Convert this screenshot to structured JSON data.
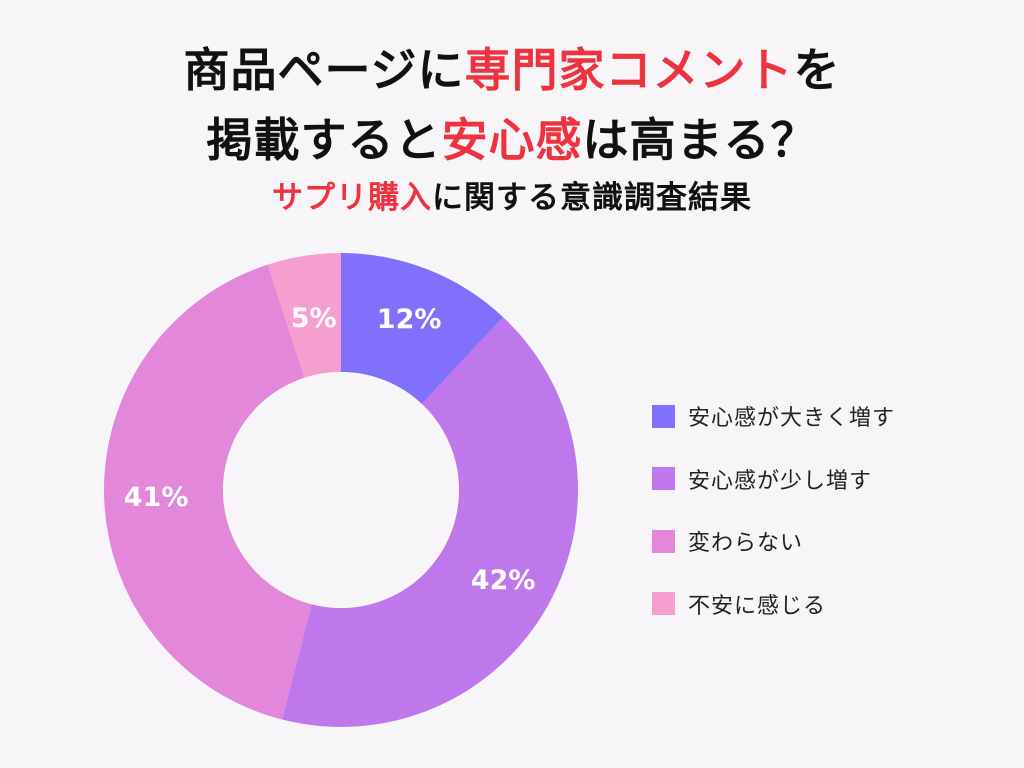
{
  "title": {
    "line1": [
      {
        "text": "商品ページに",
        "highlight": false
      },
      {
        "text": "専門家コメント",
        "highlight": true
      },
      {
        "text": "を",
        "highlight": false
      }
    ],
    "line2": [
      {
        "text": "掲載すると",
        "highlight": false
      },
      {
        "text": "安心感",
        "highlight": true
      },
      {
        "text": "は高まる？",
        "highlight": false
      }
    ],
    "subtitle": [
      {
        "text": "サプリ購入",
        "highlight": true
      },
      {
        "text": "に関する意識調査結果",
        "highlight": false
      }
    ]
  },
  "colors": {
    "highlight": "#ee3340",
    "text": "#111111",
    "background": "#f7f5f7"
  },
  "chart_data": {
    "type": "pie",
    "subtype": "donut",
    "title": "商品ページに専門家コメントを掲載すると安心感は高まる？",
    "subtitle": "サプリ購入に関する意識調査結果",
    "categories": [
      "安心感が大きく増す",
      "安心感が少し増す",
      "変わらない",
      "不安に感じる"
    ],
    "values": [
      12,
      42,
      41,
      5
    ],
    "labels": [
      "12%",
      "42%",
      "41%",
      "5%"
    ],
    "colors": [
      "#8070fc",
      "#be78ec",
      "#e287da",
      "#f59ed0"
    ],
    "start_angle_deg": 0,
    "direction": "clockwise",
    "legend_position": "right"
  }
}
